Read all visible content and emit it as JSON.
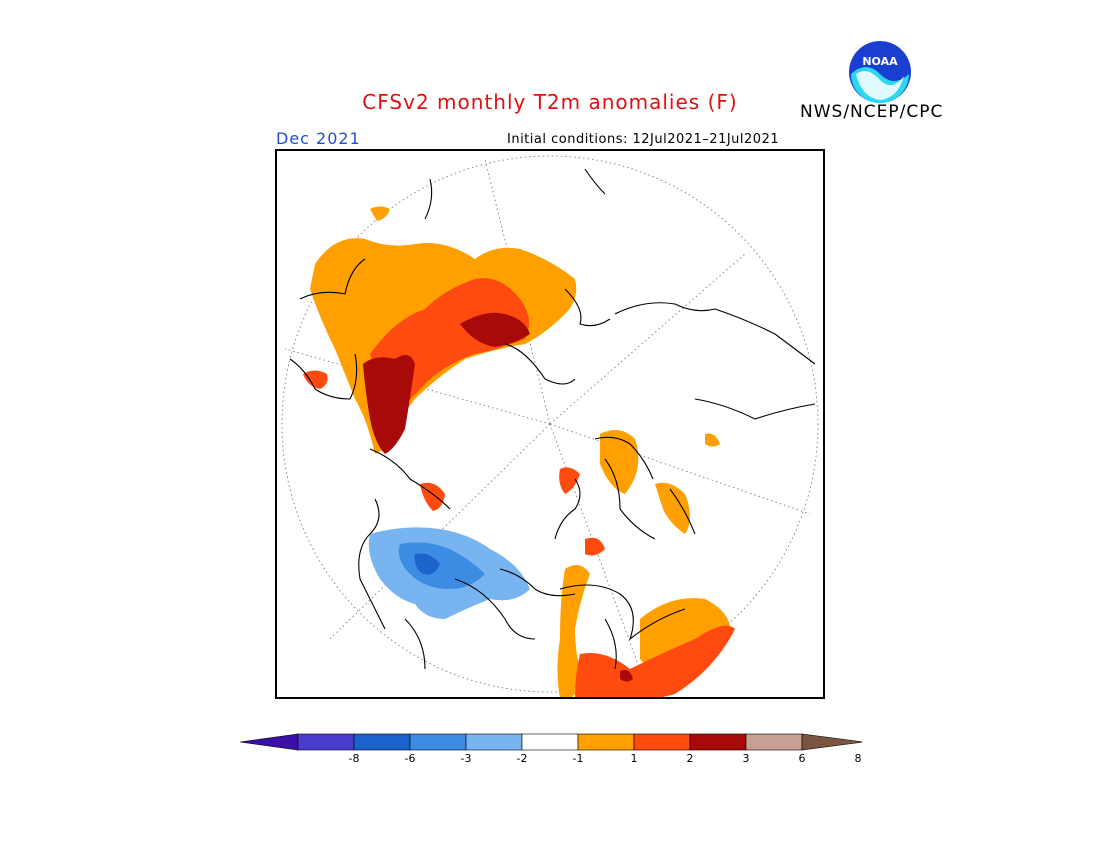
{
  "header": {
    "title": "CFSv2 monthly T2m anomalies (F)",
    "agency": "NWS/NCEP/CPC",
    "logo_text": "NOAA",
    "forecast_month": "Dec 2021",
    "initial_conditions": "Initial conditions: 12Jul2021–21Jul2021"
  },
  "colorbar": {
    "tick_labels": [
      "-8",
      "-6",
      "-3",
      "-2",
      "-1",
      "1",
      "2",
      "3",
      "6",
      "8"
    ],
    "colors": [
      "#3a10a8",
      "#4a3ccc",
      "#1c64cc",
      "#3c8ce4",
      "#78b4f0",
      "#ffffff",
      "#ffa000",
      "#ff4a10",
      "#a80a0a",
      "#c8a092",
      "#7a5440"
    ]
  },
  "colors": {
    "title": "#e01010",
    "month": "#1f4fd8",
    "frame": "#000000"
  }
}
